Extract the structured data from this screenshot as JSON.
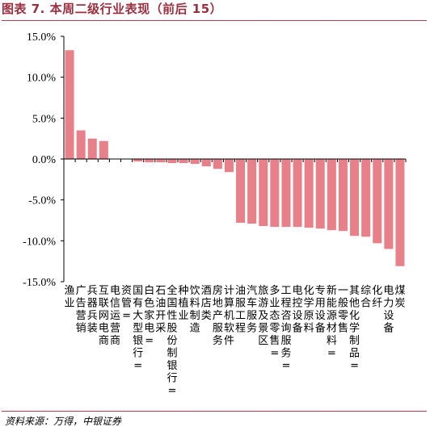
{
  "title": "图表 7. 本周二级行业表现（前后 15）",
  "source": "资料来源：万得，中银证券",
  "colors": {
    "bar": "#e8808a",
    "accent": "#b04050",
    "axis": "#000000"
  },
  "chart_data": {
    "type": "bar",
    "ylim": [
      -15,
      15
    ],
    "yticks": [
      "15.0%",
      "10.0%",
      "5.0%",
      "0.0%",
      "-5.0%",
      "-10.0%",
      "-15.0%"
    ],
    "ytick_values": [
      15,
      10,
      5,
      0,
      -5,
      -10,
      -15
    ],
    "categories": [
      "渔业",
      "广告营销",
      "兵器兵装",
      "互联网电商",
      "电信运营商",
      "资管=",
      "国有大型银行=",
      "白色家电=",
      "石油开采",
      "全国性股份制银行=",
      "种植业",
      "饮料制造",
      "酒店类",
      "房地产服务",
      "计算机软件",
      "油服工程",
      "汽车服务",
      "旅游及景区",
      "多业态零售=",
      "工程咨询服务=",
      "电控设备",
      "化学原料",
      "专用设备",
      "新能源材料=",
      "一般零售",
      "其他化学制品=",
      "综合",
      "化纤",
      "电力设备",
      "煤炭"
    ],
    "values": [
      13.3,
      3.5,
      2.5,
      2.2,
      0,
      0,
      -0.3,
      -0.4,
      -0.4,
      -0.5,
      -0.5,
      -0.6,
      -0.9,
      -1.2,
      -1.6,
      -7.8,
      -7.9,
      -8.2,
      -8.3,
      -8.3,
      -8.3,
      -8.4,
      -8.5,
      -8.7,
      -8.8,
      -9.4,
      -9.5,
      -10.3,
      -11.0,
      -13.1
    ]
  }
}
